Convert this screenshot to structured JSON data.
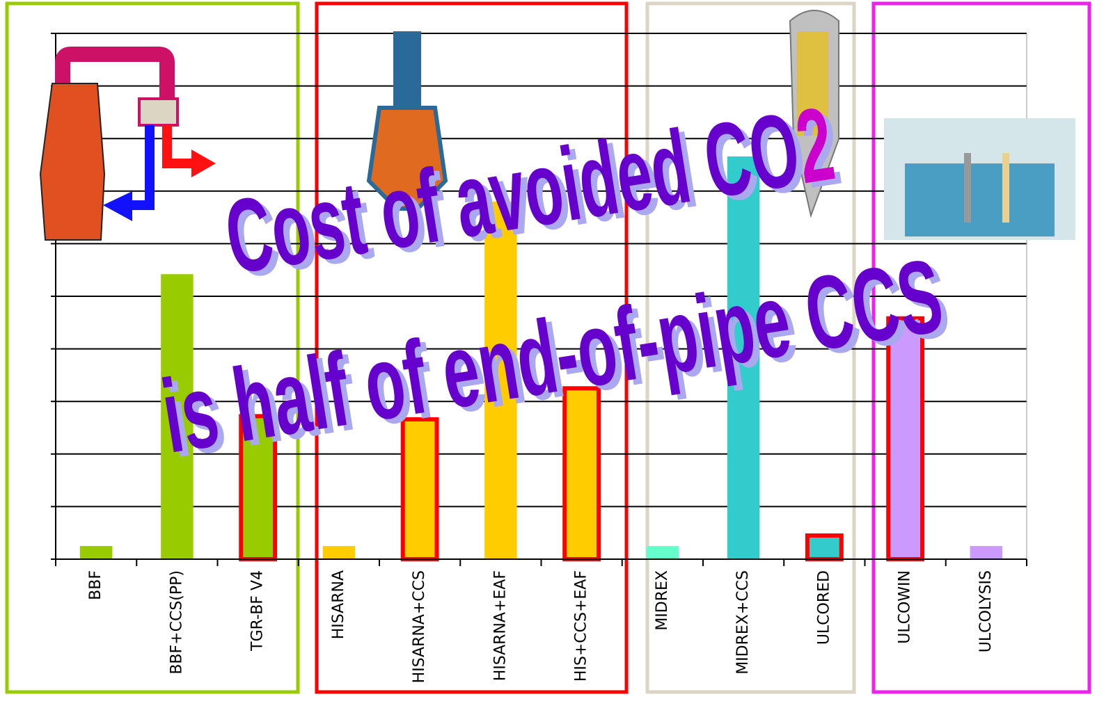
{
  "chart_data": {
    "type": "bar",
    "categories": [
      "BBF",
      "BBF+CCS(PP)",
      "TGR-BF V4",
      "HISARNA",
      "HISARNA+CCS",
      "HISARNA+EAF",
      "HIS+CCS+EAF",
      "MIDREX",
      "MIDREX+CCS",
      "ULCORED",
      "ULCOWIN",
      "ULCOLYSIS"
    ],
    "values": [
      0.25,
      5.42,
      2.72,
      0.25,
      2.66,
      6.8,
      3.25,
      0.25,
      7.66,
      0.45,
      4.58,
      0.25
    ],
    "colors": [
      "#99cc00",
      "#99cc00",
      "#99cc00",
      "#ffcc00",
      "#ffcc00",
      "#ffcc00",
      "#ffcc00",
      "#66ffcc",
      "#33cccc",
      "#33cccc",
      "#cc99ff",
      "#cc99ff"
    ],
    "outlined": [
      false,
      false,
      true,
      false,
      true,
      false,
      true,
      false,
      false,
      true,
      true,
      false
    ],
    "outline_color": "#ff0000",
    "ylim": [
      0,
      10
    ],
    "yticks": [
      0,
      1,
      2,
      3,
      4,
      5,
      6,
      7,
      8,
      9,
      10
    ],
    "grid": true,
    "annotation": {
      "line1": "Cost of avoided CO",
      "sub": "2",
      "line2": "is half of end-of-pipe CCS"
    }
  }
}
